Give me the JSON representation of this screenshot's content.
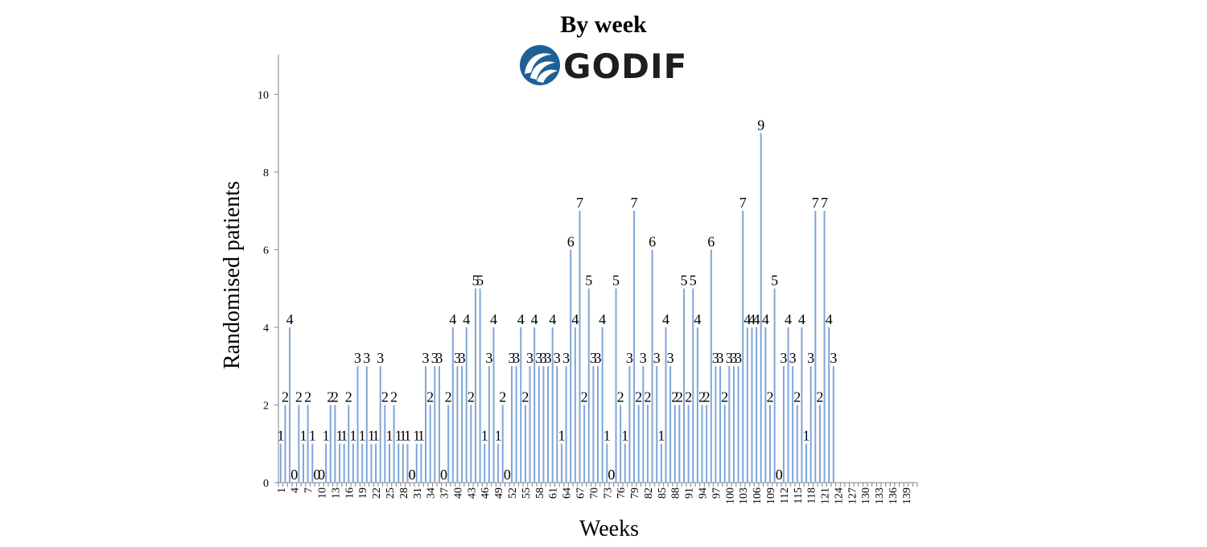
{
  "chart_data": {
    "type": "bar",
    "title": "By week",
    "logo_text": "GODIF",
    "xlabel": "Weeks",
    "ylabel": "Randomised patients",
    "ylim": [
      0,
      11
    ],
    "y_ticks": [
      0,
      2,
      4,
      6,
      8,
      10
    ],
    "x_range": [
      1,
      141
    ],
    "x_tick_labels": [
      1,
      4,
      7,
      10,
      13,
      16,
      19,
      22,
      25,
      28,
      31,
      34,
      37,
      40,
      43,
      46,
      49,
      52,
      55,
      58,
      61,
      64,
      67,
      70,
      73,
      76,
      79,
      82,
      85,
      88,
      91,
      94,
      97,
      100,
      103,
      106,
      109,
      112,
      115,
      118,
      121,
      124,
      127,
      130,
      133,
      136,
      139
    ],
    "values": [
      1,
      2,
      4,
      0,
      2,
      1,
      2,
      1,
      0,
      0,
      1,
      2,
      2,
      1,
      1,
      2,
      1,
      3,
      1,
      3,
      1,
      1,
      3,
      2,
      1,
      2,
      1,
      1,
      1,
      0,
      1,
      1,
      3,
      2,
      3,
      3,
      0,
      2,
      4,
      3,
      3,
      4,
      2,
      5,
      5,
      1,
      3,
      4,
      1,
      2,
      0,
      3,
      3,
      4,
      2,
      3,
      4,
      3,
      3,
      3,
      4,
      3,
      1,
      3,
      6,
      4,
      7,
      2,
      5,
      3,
      3,
      4,
      1,
      0,
      5,
      2,
      1,
      3,
      7,
      2,
      3,
      2,
      6,
      3,
      1,
      4,
      3,
      2,
      2,
      5,
      2,
      5,
      4,
      2,
      2,
      6,
      3,
      3,
      2,
      3,
      3,
      3,
      7,
      4,
      4,
      4,
      9,
      4,
      2,
      5,
      0,
      3,
      4,
      3,
      2,
      4,
      1,
      3,
      7,
      2,
      7,
      4,
      3
    ],
    "bar_color": "#7ea6d8",
    "logo_color": "#1f5f97"
  }
}
